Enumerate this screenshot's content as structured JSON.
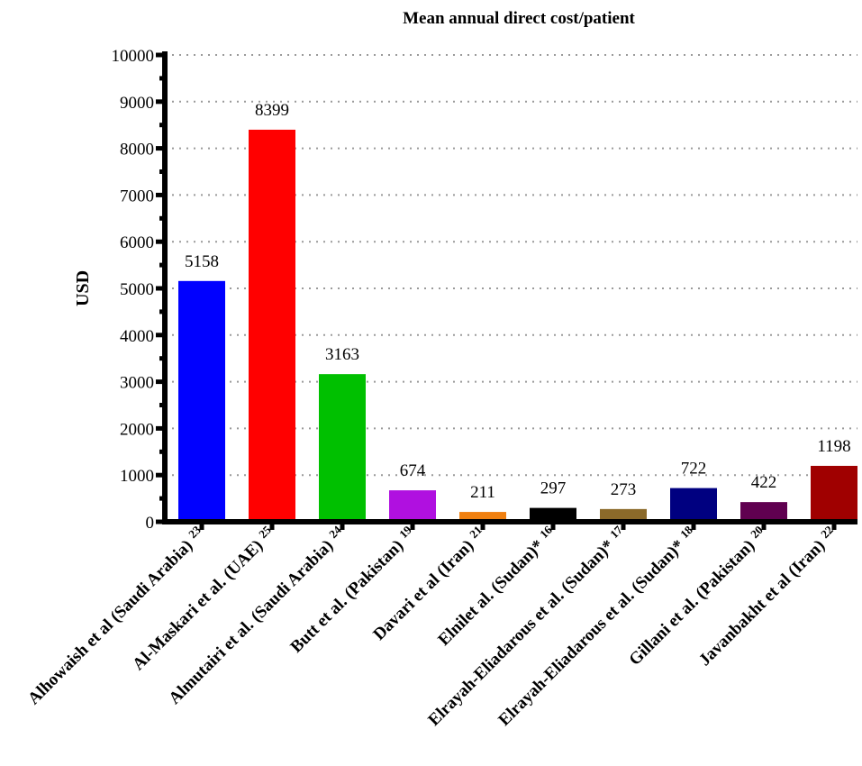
{
  "chart_data": {
    "type": "bar",
    "title": "Mean annual direct cost/patient",
    "xlabel": "",
    "ylabel": "USD",
    "ylim": [
      0,
      10000
    ],
    "yticks": [
      0,
      1000,
      2000,
      3000,
      4000,
      5000,
      6000,
      7000,
      8000,
      9000,
      10000
    ],
    "grid": true,
    "categories": [
      {
        "label": "Alhowaish et al (Saudi Arabia)",
        "ref": "23"
      },
      {
        "label": "Al-Maskari et al. (UAE)",
        "ref": "25"
      },
      {
        "label": "Almutairi et al. (Saudi Arabia)",
        "ref": "24"
      },
      {
        "label": "Butt et al. (Pakistan)",
        "ref": "19"
      },
      {
        "label": "Davari et al (Iran)",
        "ref": "21"
      },
      {
        "label": "Elnilet al. (Sudan)*",
        "ref": "16"
      },
      {
        "label": "Elrayah-Eliadarous et al. (Sudan)*",
        "ref": "17"
      },
      {
        "label": "Elrayah-Eliadarous et al. (Sudan)*",
        "ref": "18"
      },
      {
        "label": "Gillani et al. (Pakistan)",
        "ref": "20"
      },
      {
        "label": "Javanbakht et al (Iran)",
        "ref": "22"
      }
    ],
    "values": [
      5158,
      8399,
      3163,
      674,
      211,
      297,
      273,
      722,
      422,
      1198
    ],
    "value_labels": [
      "5158",
      "8399",
      "3163",
      "674",
      "211",
      "297",
      "273",
      "722",
      "422",
      "1198"
    ],
    "colors": [
      "#0000ff",
      "#ff0000",
      "#00c000",
      "#b010e0",
      "#f08010",
      "#000000",
      "#8b6a2a",
      "#000080",
      "#600050",
      "#a00000"
    ]
  }
}
